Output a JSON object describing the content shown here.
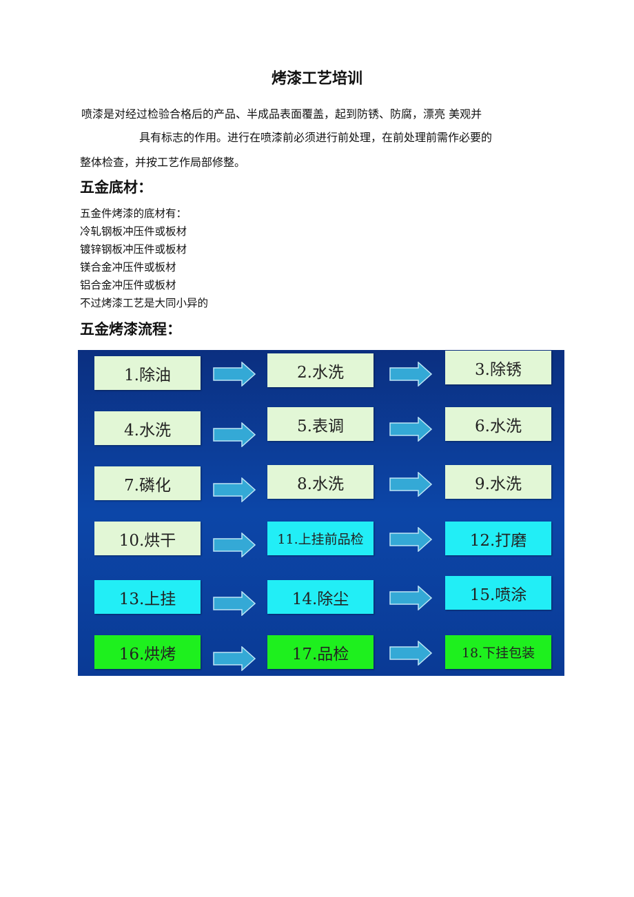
{
  "title": "烤漆工艺培训",
  "intro": {
    "line1": "喷漆是对经过检验合格后的产品、半成品表面覆盖，起到防锈、防腐，漂亮 美观并",
    "line2": "具有标志的作用。进行在喷漆前必须进行前处理，在前处理前需作必要的",
    "line3": "整体检查，并按工艺作局部修整。"
  },
  "section1": {
    "heading": "五金底材：",
    "items": [
      "五金件烤漆的底材有：",
      "冷轧钢板冲压件或板材",
      "镀锌钢板冲压件或板材",
      "镁合金冲压件或板材",
      "铝合金冲压件或板材",
      "不过烤漆工艺是大同小异的"
    ]
  },
  "section2": {
    "heading": "五金烤漆流程："
  },
  "colors": {
    "pale_green": "#e2f7d6",
    "cyan": "#22eef6",
    "green": "#1ef01e",
    "arrow": "#34a9d6",
    "background": "#0c3f9a"
  },
  "flow": {
    "steps": [
      {
        "label": "1.除油",
        "color": "pale_green"
      },
      {
        "label": "2.水洗",
        "color": "pale_green"
      },
      {
        "label": "3.除锈",
        "color": "pale_green"
      },
      {
        "label": "4.水洗",
        "color": "pale_green"
      },
      {
        "label": "5.表调",
        "color": "pale_green"
      },
      {
        "label": "6.水洗",
        "color": "pale_green"
      },
      {
        "label": "7.磷化",
        "color": "pale_green"
      },
      {
        "label": "8.水洗",
        "color": "pale_green"
      },
      {
        "label": "9.水洗",
        "color": "pale_green"
      },
      {
        "label": "10.烘干",
        "color": "pale_green"
      },
      {
        "label": "11.上挂前品检",
        "color": "cyan"
      },
      {
        "label": "12.打磨",
        "color": "cyan"
      },
      {
        "label": "13.上挂",
        "color": "cyan"
      },
      {
        "label": "14.除尘",
        "color": "cyan"
      },
      {
        "label": "15.喷涂",
        "color": "cyan"
      },
      {
        "label": "16.烘烤",
        "color": "green"
      },
      {
        "label": "17.品检",
        "color": "green"
      },
      {
        "label": "18.下挂包装",
        "color": "green"
      }
    ]
  }
}
